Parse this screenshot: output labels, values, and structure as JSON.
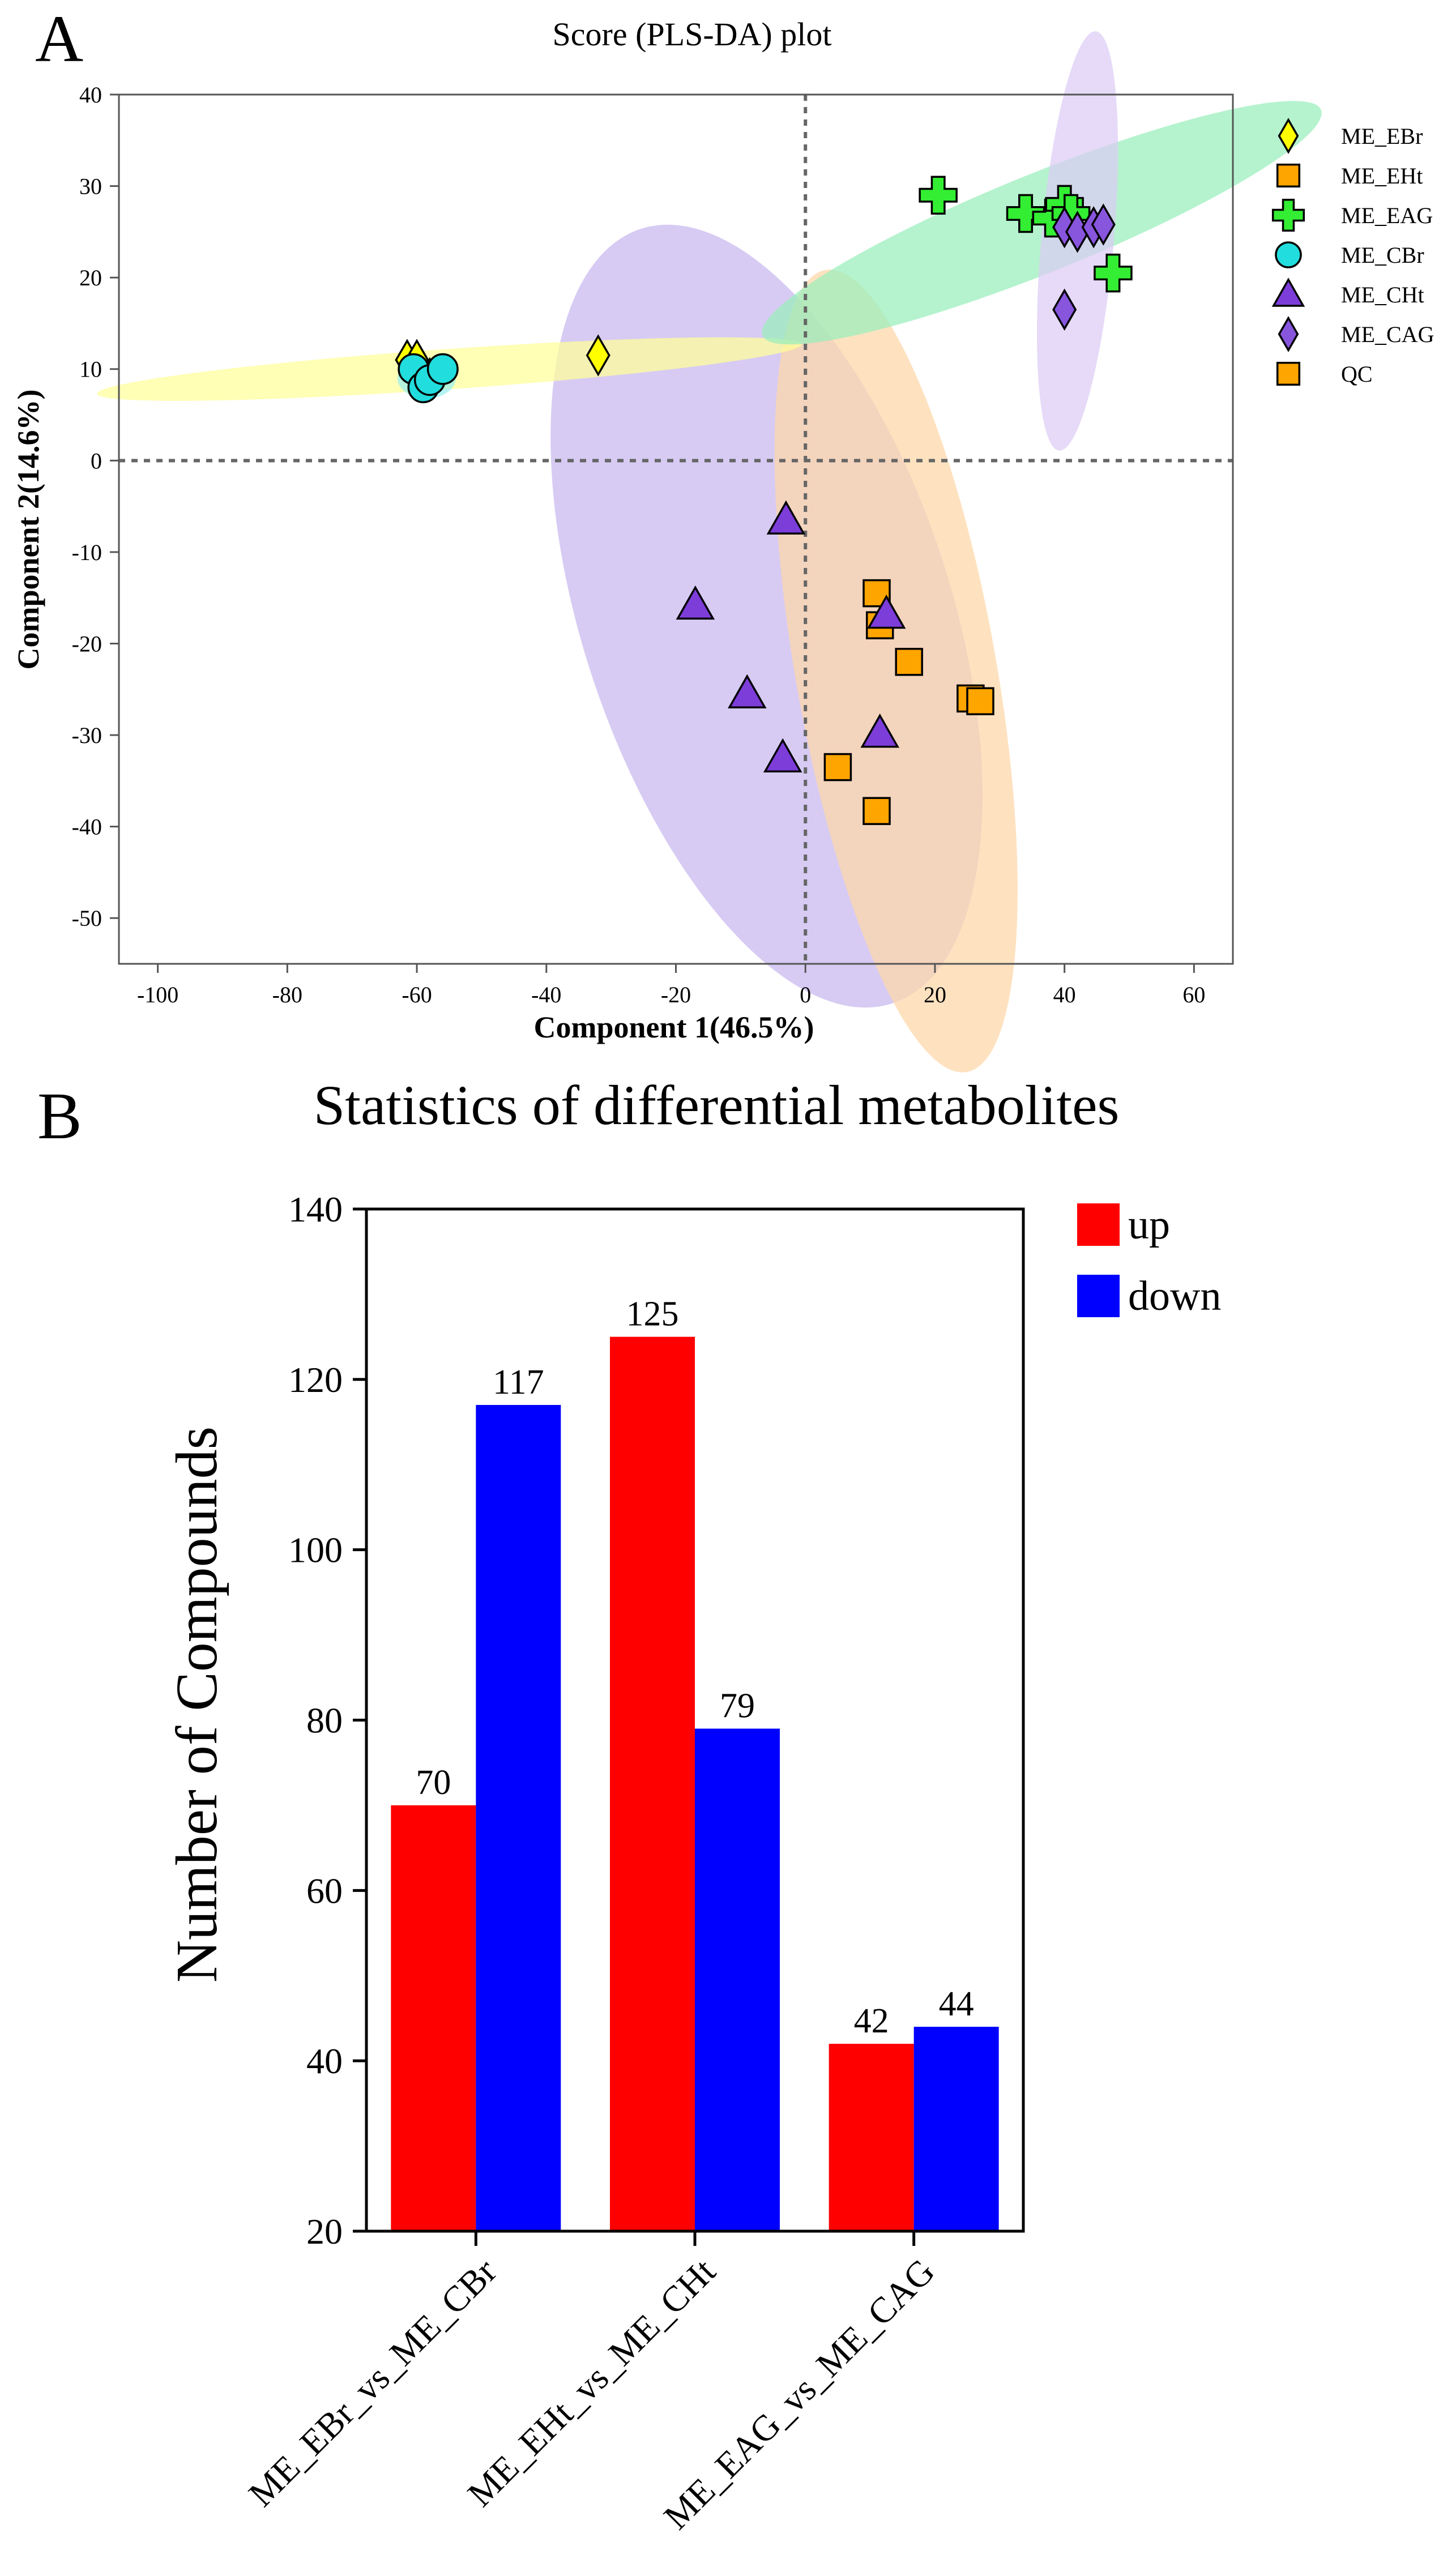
{
  "panel_a": {
    "letter": "A"
  },
  "panel_b": {
    "letter": "B"
  },
  "chart_data": [
    {
      "type": "scatter",
      "title": "Score (PLS-DA) plot",
      "xlabel": "Component 1(46.5%)",
      "ylabel": "Component 2(14.6%)",
      "xlim": [
        -106,
        66
      ],
      "ylim": [
        -55,
        40
      ],
      "xticks": [
        -100,
        -80,
        -60,
        -40,
        -20,
        0,
        20,
        40,
        60
      ],
      "yticks": [
        -50,
        -40,
        -30,
        -20,
        -10,
        0,
        10,
        20,
        30,
        40
      ],
      "reference_lines": {
        "x": 0,
        "y": 0,
        "style": "dotted"
      },
      "legend_position": "right",
      "series": [
        {
          "name": "ME_EBr",
          "marker": "diamond",
          "color": "#ffff00",
          "points": [
            [
              -61.5,
              11
            ],
            [
              -60,
              11
            ],
            [
              -58,
              9
            ],
            [
              -32,
              11.5
            ]
          ],
          "ellipse": {
            "cx": -55,
            "cy": 10,
            "rx": 54.5,
            "ry": 2.2,
            "angle": -4,
            "color": "#ffff99"
          }
        },
        {
          "name": "ME_EHt",
          "marker": "square",
          "color": "#ffa500",
          "points": [
            [
              11,
              -14.5
            ],
            [
              11.5,
              -18
            ],
            [
              16,
              -22
            ],
            [
              25.5,
              -26
            ],
            [
              27,
              -26.3
            ],
            [
              5,
              -33.5
            ],
            [
              11,
              -38.3
            ]
          ],
          "ellipse": {
            "cx": 14,
            "cy": -23,
            "rx": 15.5,
            "ry": 44.5,
            "angle": -10,
            "color": "#fdd7a8"
          }
        },
        {
          "name": "ME_EAG",
          "marker": "plus",
          "color": "#33ee33",
          "points": [
            [
              20.5,
              29
            ],
            [
              34,
              27
            ],
            [
              38,
              26.5
            ],
            [
              40,
              28
            ],
            [
              41,
              27
            ],
            [
              47.5,
              20.5
            ]
          ],
          "ellipse": {
            "cx": 36.5,
            "cy": 26,
            "rx": 46.5,
            "ry": 5.4,
            "angle": -22,
            "color": "#99eebb"
          }
        },
        {
          "name": "ME_CBr",
          "marker": "circle",
          "color": "#22dddd",
          "points": [
            [
              -60.5,
              10
            ],
            [
              -59,
              8
            ],
            [
              -58,
              8.8
            ],
            [
              -56,
              10
            ]
          ],
          "ellipse": {
            "cx": -58.5,
            "cy": 9,
            "rx": 4.5,
            "ry": 2.2,
            "angle": 0,
            "color": "#99eeee"
          }
        },
        {
          "name": "ME_CHt",
          "marker": "triangle",
          "color": "#7d3dd9",
          "points": [
            [
              -3,
              -6.5
            ],
            [
              -17,
              -15.8
            ],
            [
              12.5,
              -16.8
            ],
            [
              -9,
              -25.5
            ],
            [
              11.5,
              -29.8
            ],
            [
              -3.5,
              -32.5
            ]
          ],
          "ellipse": {
            "cx": -6,
            "cy": -17,
            "rx": 28.5,
            "ry": 44.5,
            "angle": -18,
            "color": "#c8b7ee"
          }
        },
        {
          "name": "ME_CAG",
          "marker": "diamond",
          "color": "#8855dd",
          "points": [
            [
              40,
              25.5
            ],
            [
              42,
              25
            ],
            [
              44.5,
              25.5
            ],
            [
              46,
              25.8
            ],
            [
              40,
              16.5
            ]
          ],
          "ellipse": {
            "cx": 42,
            "cy": 24,
            "rx": 5.6,
            "ry": 23,
            "angle": 5,
            "color": "#ddccf5"
          }
        },
        {
          "name": "QC",
          "marker": "square",
          "color": "#ffa500",
          "points": []
        }
      ]
    },
    {
      "type": "bar",
      "title": "Statistics of differential metabolites",
      "xlabel": "",
      "ylabel": "Number of Compounds",
      "ylim": [
        20,
        140
      ],
      "yticks": [
        20,
        40,
        60,
        80,
        100,
        120,
        140
      ],
      "categories": [
        "ME_EBr_vs_ME_CBr",
        "ME_EHt_vs_ME_CHt",
        "ME_EAG_vs_ME_CAG"
      ],
      "series": [
        {
          "name": "up",
          "color": "#ff0000",
          "values": [
            70,
            125,
            42
          ]
        },
        {
          "name": "down",
          "color": "#0000ff",
          "values": [
            117,
            79,
            44
          ]
        }
      ],
      "legend_position": "top-right"
    }
  ]
}
